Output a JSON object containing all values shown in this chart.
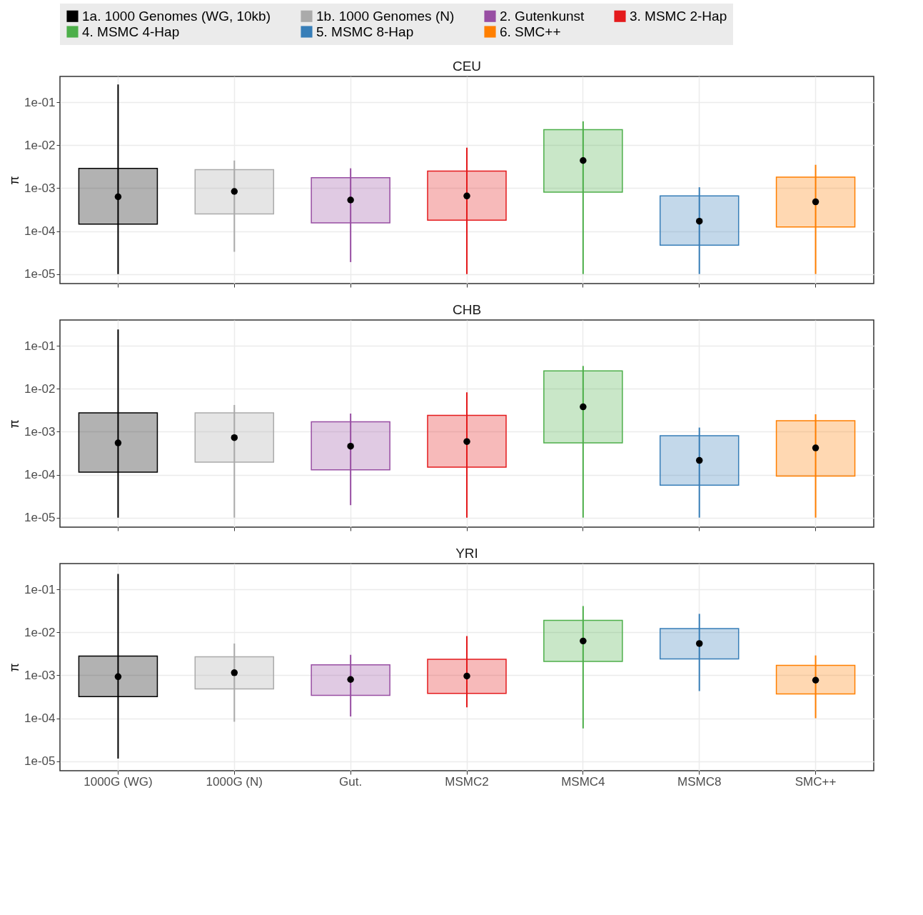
{
  "chart_data": [
    {
      "type": "box",
      "title": "CEU",
      "ylabel": "π",
      "log": true,
      "grid": true,
      "legend": "top",
      "tick_labels": "y",
      "ylim": [
        6e-06,
        0.4
      ],
      "yticks": [
        {
          "value": 1e-05,
          "label": "1e-05"
        },
        {
          "value": 0.0001,
          "label": "1e-04"
        },
        {
          "value": 0.001,
          "label": "1e-03"
        },
        {
          "value": 0.01,
          "label": "1e-02"
        },
        {
          "value": 0.1,
          "label": "1e-01"
        }
      ],
      "series": [
        {
          "name": "1a. 1000 Genomes (WG, 10kb)",
          "color": "#000000",
          "boxes": [
            {
              "low": 1e-05,
              "q1": 0.000145,
              "median": 0.00063,
              "q3": 0.0029,
              "high": 0.26
            },
            null,
            null,
            null,
            null,
            null,
            null
          ]
        },
        {
          "name": "1b. 1000 Genomes (N)",
          "color": "#aaaaaa",
          "boxes": [
            null,
            {
              "low": 3.3e-05,
              "q1": 0.00025,
              "median": 0.00084,
              "q3": 0.0027,
              "high": 0.0044
            },
            null,
            null,
            null,
            null,
            null
          ]
        },
        {
          "name": "2. Gutenkunst",
          "color": "#984ea3",
          "boxes": [
            null,
            null,
            {
              "low": 1.9e-05,
              "q1": 0.000155,
              "median": 0.00053,
              "q3": 0.00175,
              "high": 0.0029
            },
            null,
            null,
            null,
            null
          ]
        },
        {
          "name": "3. MSMC 2-Hap",
          "color": "#e41a1c",
          "boxes": [
            null,
            null,
            null,
            {
              "low": 1e-05,
              "q1": 0.00018,
              "median": 0.00066,
              "q3": 0.0025,
              "high": 0.0088
            },
            null,
            null,
            null
          ]
        },
        {
          "name": "4. MSMC 4-Hap",
          "color": "#4daf4a",
          "boxes": [
            null,
            null,
            null,
            null,
            {
              "low": 1e-05,
              "q1": 0.00081,
              "median": 0.0044,
              "q3": 0.023,
              "high": 0.036
            },
            null,
            null
          ]
        },
        {
          "name": "5. MSMC 8-Hap",
          "color": "#377eb8",
          "boxes": [
            null,
            null,
            null,
            null,
            null,
            {
              "low": 1e-05,
              "q1": 4.7e-05,
              "median": 0.00017,
              "q3": 0.00066,
              "high": 0.00105
            },
            null
          ]
        },
        {
          "name": "6. SMC++",
          "color": "#ff7f00",
          "boxes": [
            null,
            null,
            null,
            null,
            null,
            null,
            {
              "low": 1e-05,
              "q1": 0.000125,
              "median": 0.00048,
              "q3": 0.0018,
              "high": 0.0035
            }
          ]
        }
      ]
    },
    {
      "type": "box",
      "title": "CHB",
      "ylabel": "π",
      "log": true,
      "grid": true,
      "tick_labels": "y",
      "ylim": [
        6e-06,
        0.4
      ],
      "yticks": [
        {
          "value": 1e-05,
          "label": "1e-05"
        },
        {
          "value": 0.0001,
          "label": "1e-04"
        },
        {
          "value": 0.001,
          "label": "1e-03"
        },
        {
          "value": 0.01,
          "label": "1e-02"
        },
        {
          "value": 0.1,
          "label": "1e-01"
        }
      ],
      "series": [
        {
          "color": "#000000",
          "boxes": [
            {
              "low": 1e-05,
              "q1": 0.000115,
              "median": 0.00055,
              "q3": 0.00275,
              "high": 0.24
            },
            null,
            null,
            null,
            null,
            null,
            null
          ]
        },
        {
          "color": "#aaaaaa",
          "boxes": [
            null,
            {
              "low": 1e-05,
              "q1": 0.000195,
              "median": 0.00073,
              "q3": 0.00275,
              "high": 0.0042
            },
            null,
            null,
            null,
            null,
            null
          ]
        },
        {
          "color": "#984ea3",
          "boxes": [
            null,
            null,
            {
              "low": 1.95e-05,
              "q1": 0.00013,
              "median": 0.00046,
              "q3": 0.0017,
              "high": 0.00265
            },
            null,
            null,
            null,
            null
          ]
        },
        {
          "color": "#e41a1c",
          "boxes": [
            null,
            null,
            null,
            {
              "low": 1e-05,
              "q1": 0.00015,
              "median": 0.00059,
              "q3": 0.0024,
              "high": 0.0083
            },
            null,
            null,
            null
          ]
        },
        {
          "color": "#4daf4a",
          "boxes": [
            null,
            null,
            null,
            null,
            {
              "low": 1e-05,
              "q1": 0.00055,
              "median": 0.0038,
              "q3": 0.026,
              "high": 0.034
            },
            null,
            null
          ]
        },
        {
          "color": "#377eb8",
          "boxes": [
            null,
            null,
            null,
            null,
            null,
            {
              "low": 1e-05,
              "q1": 5.7e-05,
              "median": 0.000215,
              "q3": 0.00081,
              "high": 0.00125
            },
            null
          ]
        },
        {
          "color": "#ff7f00",
          "boxes": [
            null,
            null,
            null,
            null,
            null,
            null,
            {
              "low": 1e-05,
              "q1": 9.3e-05,
              "median": 0.00042,
              "q3": 0.0018,
              "high": 0.00255
            }
          ]
        }
      ]
    },
    {
      "type": "box",
      "title": "YRI",
      "ylabel": "π",
      "log": true,
      "grid": true,
      "ylim": [
        6e-06,
        0.4
      ],
      "yticks": [
        {
          "value": 1e-05,
          "label": "1e-05"
        },
        {
          "value": 0.0001,
          "label": "1e-04"
        },
        {
          "value": 0.001,
          "label": "1e-03"
        },
        {
          "value": 0.01,
          "label": "1e-02"
        },
        {
          "value": 0.1,
          "label": "1e-01"
        }
      ],
      "categories": [
        "1000G (WG)",
        "1000G (N)",
        "Gut.",
        "MSMC2",
        "MSMC4",
        "MSMC8",
        "SMC++"
      ],
      "series": [
        {
          "color": "#000000",
          "boxes": [
            {
              "low": 1.15e-05,
              "q1": 0.00032,
              "median": 0.00093,
              "q3": 0.0028,
              "high": 0.23
            },
            null,
            null,
            null,
            null,
            null,
            null
          ]
        },
        {
          "color": "#aaaaaa",
          "boxes": [
            null,
            {
              "low": 8.3e-05,
              "q1": 0.00048,
              "median": 0.00115,
              "q3": 0.0027,
              "high": 0.0055
            },
            null,
            null,
            null,
            null,
            null
          ]
        },
        {
          "color": "#984ea3",
          "boxes": [
            null,
            null,
            {
              "low": 0.00011,
              "q1": 0.00034,
              "median": 0.0008,
              "q3": 0.00175,
              "high": 0.003
            },
            null,
            null,
            null,
            null
          ]
        },
        {
          "color": "#e41a1c",
          "boxes": [
            null,
            null,
            null,
            {
              "low": 0.00018,
              "q1": 0.00038,
              "median": 0.00096,
              "q3": 0.00235,
              "high": 0.0082
            },
            null,
            null,
            null
          ]
        },
        {
          "color": "#4daf4a",
          "boxes": [
            null,
            null,
            null,
            null,
            {
              "low": 5.8e-05,
              "q1": 0.0021,
              "median": 0.0063,
              "q3": 0.019,
              "high": 0.041
            },
            null,
            null
          ]
        },
        {
          "color": "#377eb8",
          "boxes": [
            null,
            null,
            null,
            null,
            null,
            {
              "low": 0.00043,
              "q1": 0.0024,
              "median": 0.0055,
              "q3": 0.0123,
              "high": 0.027
            },
            null
          ]
        },
        {
          "color": "#ff7f00",
          "boxes": [
            null,
            null,
            null,
            null,
            null,
            null,
            {
              "low": 0.0001,
              "q1": 0.00037,
              "median": 0.00077,
              "q3": 0.0017,
              "high": 0.0029
            }
          ]
        }
      ]
    }
  ]
}
